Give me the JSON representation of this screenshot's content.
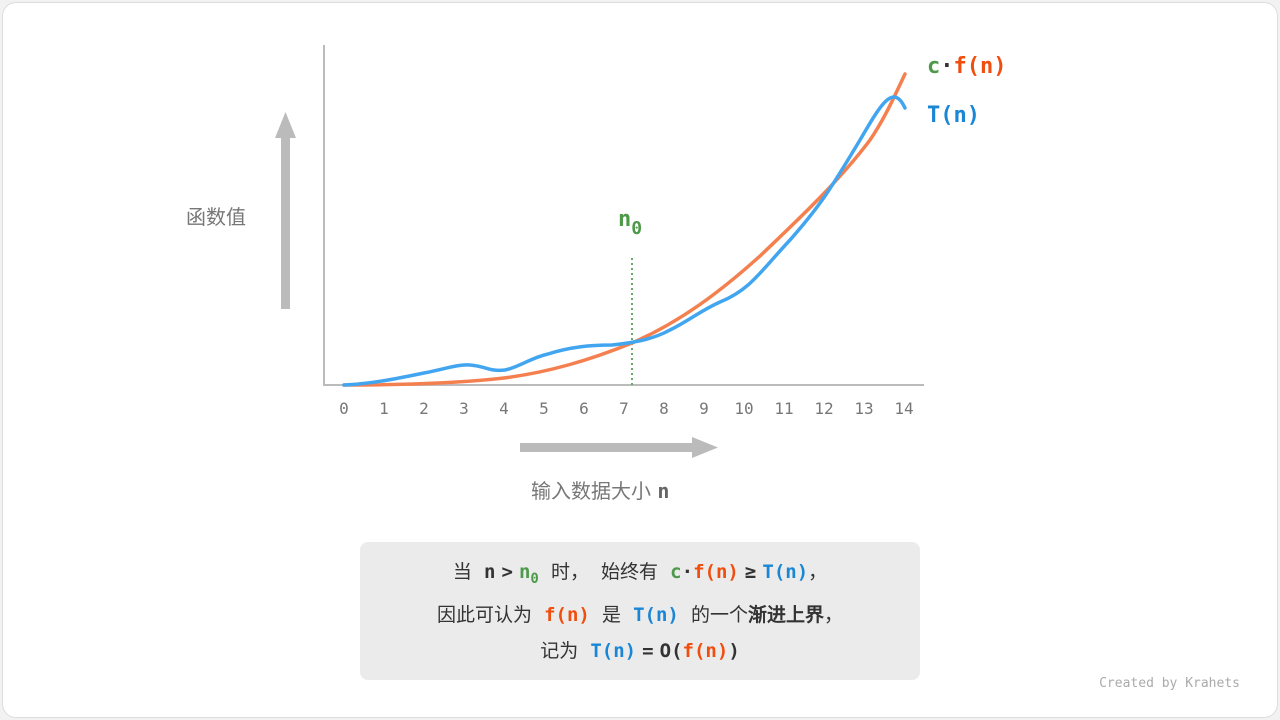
{
  "diagram": {
    "y_label": "函数值",
    "x_label": "输入数据大小",
    "x_var": "n",
    "x_ticks": [
      "0",
      "1",
      "2",
      "3",
      "4",
      "5",
      "6",
      "7",
      "8",
      "9",
      "10",
      "11",
      "12",
      "13",
      "14"
    ],
    "legend": {
      "c": "c",
      "dot": "·",
      "f": "f(n)",
      "t": "T(n)"
    },
    "n0": {
      "n": "n",
      "sub": "0"
    },
    "colors": {
      "green": "#4e9a4a",
      "orange": "#f04e0f",
      "blue": "#1a86d6",
      "orange_curve": "#f5804f",
      "blue_curve": "#42a5f0"
    }
  },
  "note": {
    "l1": {
      "a": "当",
      "n": "n",
      "gt": ">",
      "n0": "n",
      "n0sub": "0",
      "b": "时，",
      "c": "始终有",
      "cc": "c",
      "dot": "·",
      "f": "f(n)",
      "ge": "≥",
      "t": "T(n)",
      "comma": "，"
    },
    "l2": {
      "a": "因此可认为",
      "f": "f(n)",
      "b": "是",
      "t": "T(n)",
      "c": "的一个",
      "bold": "渐进上界",
      "comma": "，"
    },
    "l3": {
      "a": "记为",
      "t": "T(n)",
      "eq": "=",
      "o": "O(",
      "f": "f(n)",
      "close": ")"
    }
  },
  "credit": "Created by Krahets"
}
